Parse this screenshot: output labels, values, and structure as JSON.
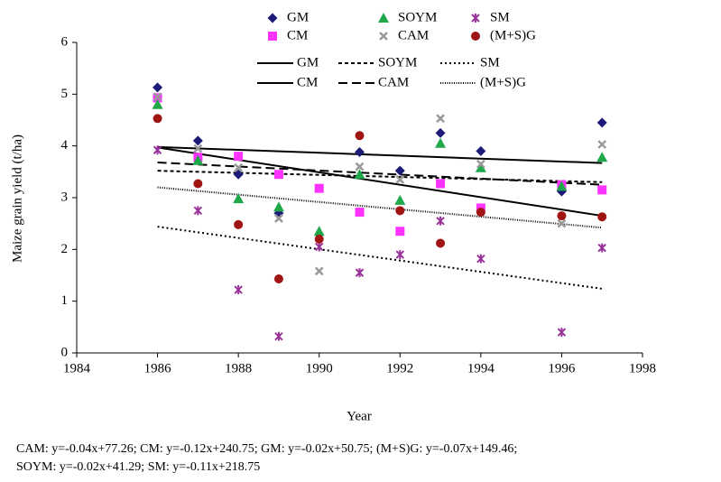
{
  "chart_data": {
    "type": "scatter",
    "xlabel": "Year",
    "ylabel": "Maize grain yield (t/ha)",
    "xlim": [
      1984,
      1998
    ],
    "xticks": [
      1984,
      1986,
      1988,
      1990,
      1992,
      1994,
      1996,
      1998
    ],
    "ylim": [
      0,
      6
    ],
    "yticks": [
      0,
      1,
      2,
      3,
      4,
      5,
      6
    ],
    "grid": false,
    "x": [
      1986,
      1987,
      1988,
      1989,
      1990,
      1991,
      1992,
      1993,
      1994,
      1996,
      1997
    ],
    "series": [
      {
        "name": "GM",
        "color": "#1c1c78",
        "marker": "diamond",
        "values": [
          5.13,
          4.1,
          3.45,
          2.7,
          null,
          3.88,
          3.52,
          4.25,
          3.9,
          3.12,
          4.45
        ]
      },
      {
        "name": "CM",
        "color": "#ff33ff",
        "marker": "square",
        "values": [
          4.93,
          3.78,
          3.8,
          3.45,
          3.18,
          2.72,
          2.35,
          3.27,
          2.8,
          3.25,
          3.15
        ]
      },
      {
        "name": "SOYM",
        "color": "#1fa84a",
        "marker": "triangle",
        "values": [
          4.8,
          3.72,
          2.98,
          2.82,
          2.35,
          3.45,
          2.95,
          4.05,
          3.58,
          3.22,
          3.78
        ]
      },
      {
        "name": "CAM",
        "color": "#999999",
        "marker": "x",
        "values": [
          4.95,
          3.95,
          3.58,
          2.6,
          1.58,
          3.6,
          3.35,
          4.53,
          3.65,
          2.5,
          4.03
        ]
      },
      {
        "name": "SM",
        "color": "#993399",
        "marker": "star",
        "values": [
          3.92,
          2.75,
          1.22,
          0.32,
          2.05,
          1.55,
          1.9,
          2.55,
          1.82,
          0.4,
          2.03
        ]
      },
      {
        "name": "(M+S)G",
        "color": "#a01414",
        "marker": "circle",
        "values": [
          4.53,
          3.27,
          2.48,
          1.43,
          2.2,
          4.2,
          2.75,
          2.12,
          2.72,
          2.65,
          2.63
        ]
      }
    ],
    "trend_lines": [
      {
        "name": "GM",
        "style": "solid",
        "x": [
          1986,
          1997
        ],
        "values": [
          3.98,
          3.67
        ]
      },
      {
        "name": "CM",
        "style": "solid",
        "x": [
          1986,
          1997
        ],
        "values": [
          3.97,
          2.65
        ]
      },
      {
        "name": "SOYM",
        "style": "dashed",
        "x": [
          1986,
          1997
        ],
        "values": [
          3.52,
          3.3
        ]
      },
      {
        "name": "CAM",
        "style": "long-dashed",
        "x": [
          1986,
          1997
        ],
        "values": [
          3.68,
          3.25
        ]
      },
      {
        "name": "SM",
        "style": "dotted",
        "x": [
          1986,
          1997
        ],
        "values": [
          2.44,
          1.24
        ]
      },
      {
        "name": "(M+S)G",
        "style": "densely-dotted",
        "x": [
          1986,
          1997
        ],
        "values": [
          3.2,
          2.42
        ]
      }
    ],
    "notes": [
      "CAM: y=-0.04x+77.26; CM: y=-0.12x+240.75; GM: y=-0.02x+50.75; (M+S)G: y=-0.07x+149.46;",
      "SOYM: y=-0.02x+41.29; SM: y=-0.11x+218.75"
    ]
  }
}
